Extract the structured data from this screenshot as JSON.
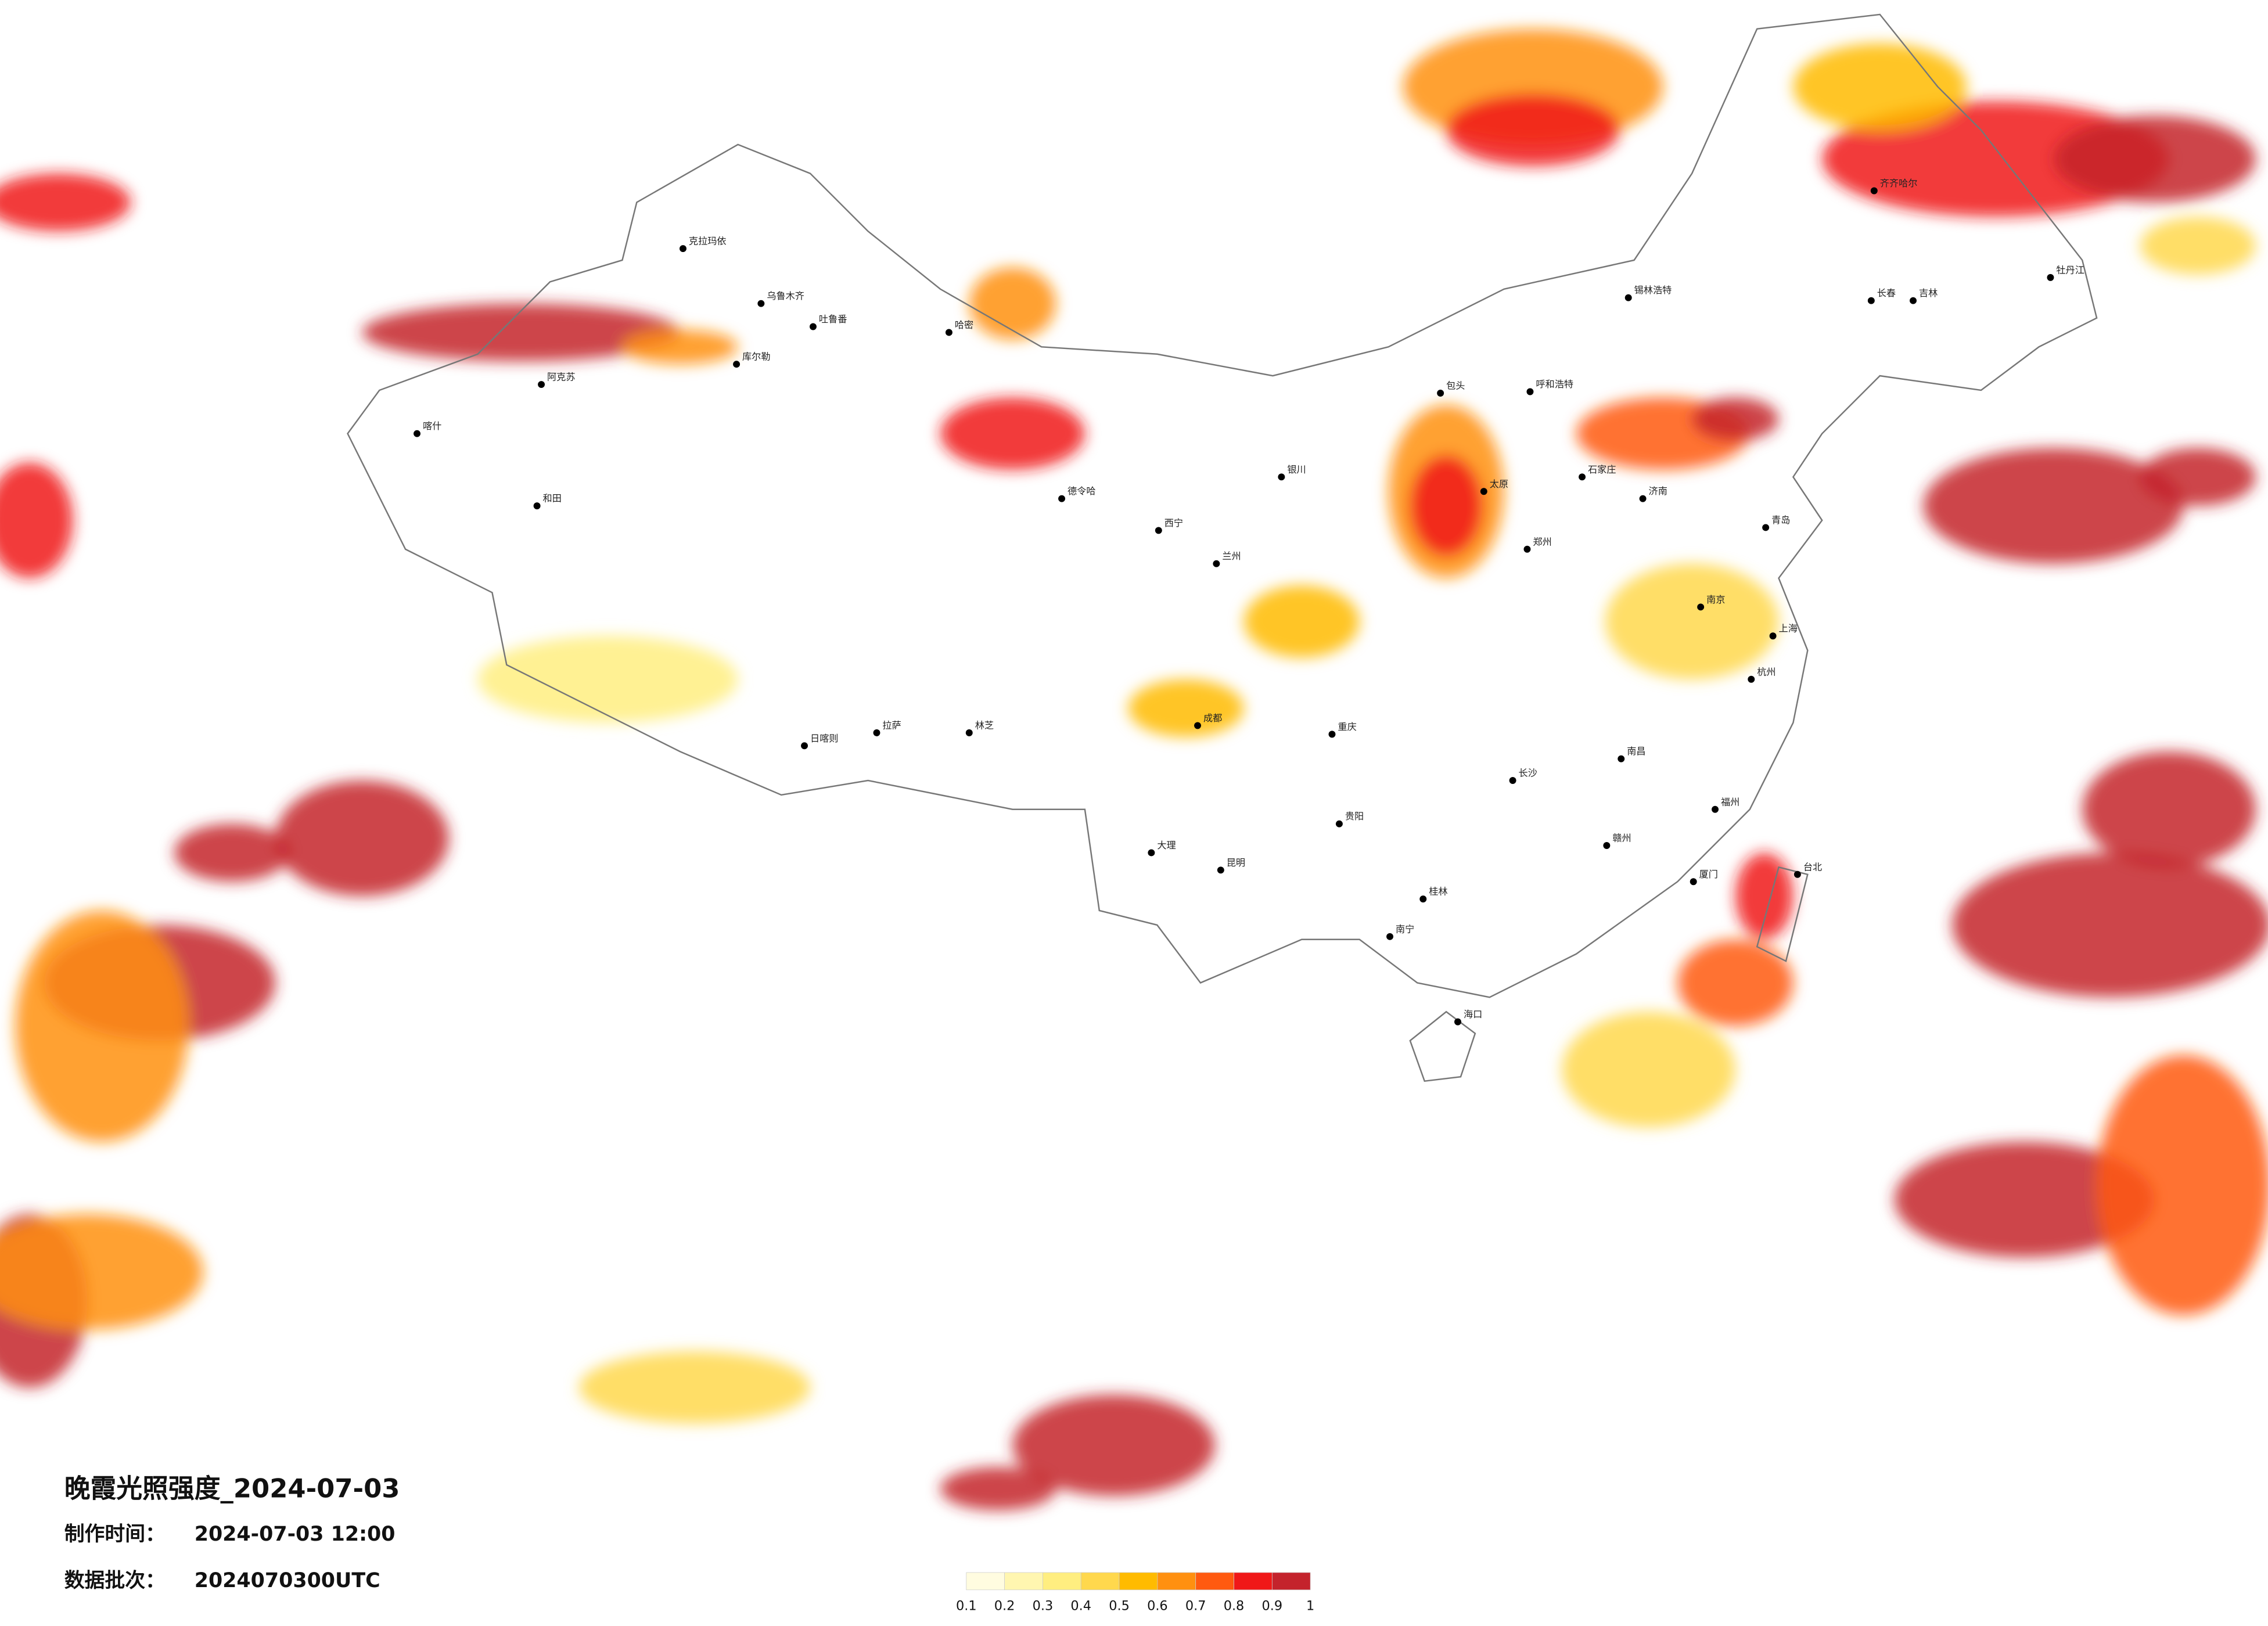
{
  "title": "晚霞光照强度_2024-07-03",
  "made_time_label": "制作时间：",
  "made_time": "2024-07-03 12:00",
  "batch_label": "数据批次：",
  "batch": "2024070300UTC",
  "legend": {
    "ticks": [
      0.1,
      0.2,
      0.3,
      0.4,
      0.5,
      0.6,
      0.7,
      0.8,
      0.9,
      1
    ],
    "colors": [
      "#fffce0",
      "#fff6b0",
      "#ffee80",
      "#ffd84d",
      "#ffbb00",
      "#ff9010",
      "#ff5a10",
      "#f01818",
      "#c4232c"
    ]
  },
  "cities": [
    "克拉玛依",
    "乌鲁木齐",
    "吐鲁番",
    "哈密",
    "库尔勒",
    "阿克苏",
    "喀什",
    "和田",
    "德令哈",
    "拉萨",
    "日喀则",
    "林芝",
    "西宁",
    "兰州",
    "银川",
    "呼和浩特",
    "包头",
    "齐齐哈尔",
    "长春",
    "吉林",
    "牡丹江",
    "锡林浩特",
    "成都",
    "重庆",
    "贵阳",
    "昆明",
    "南宁",
    "海口",
    "长沙",
    "南昌",
    "福州",
    "台北",
    "郑州",
    "石家庄",
    "太原",
    "济南",
    "青岛",
    "南京",
    "上海",
    "杭州",
    "赣州",
    "大理",
    "桂林",
    "厦门"
  ]
}
